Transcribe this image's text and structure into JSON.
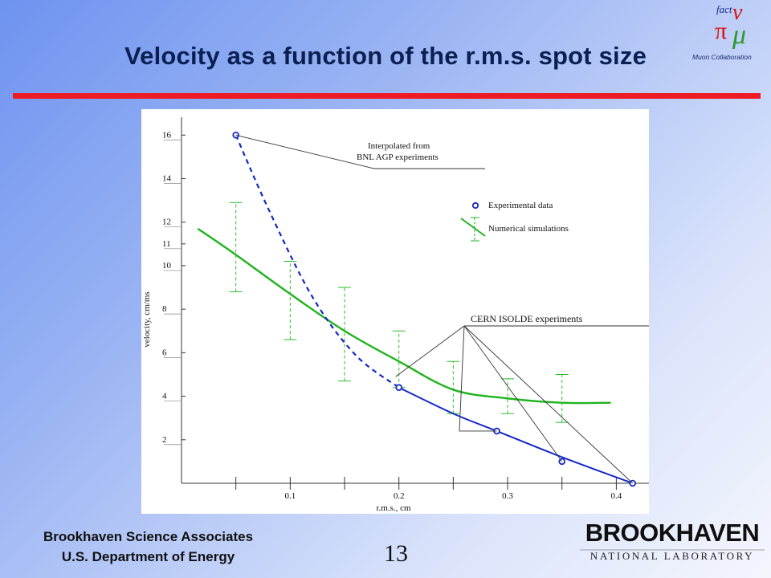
{
  "slide": {
    "title": "Velocity as a function of the r.m.s. spot size",
    "footer_line1": "Brookhaven Science Associates",
    "footer_line2": "U.S. Department of Energy",
    "page_number": "13",
    "logo_top": {
      "line1": "fact",
      "line2": "Muon Collaboration",
      "icon": "nu-pi-mu-logo"
    },
    "logo_bottom": {
      "word1": "BROOKHAVEN",
      "word2": "NATIONAL LABORATORY"
    },
    "colors": {
      "title": "#0a1f52",
      "rule": "#ee1b24",
      "experimental": "#1428c8",
      "simulation": "#1fb41f"
    }
  },
  "chart_data": {
    "type": "line",
    "xlabel": "r.m.s., cm",
    "ylabel": "velocity, cm/ms",
    "xlim": [
      0,
      0.43
    ],
    "ylim": [
      0,
      16.6
    ],
    "x_ticks": [
      0.1,
      0.2,
      0.3,
      0.4
    ],
    "x_tick_labels": [
      "0.1",
      "0.2",
      "0.3",
      "0.4"
    ],
    "y_ticks": [
      2,
      4,
      6,
      8,
      10,
      11,
      12,
      14,
      16
    ],
    "y_tick_labels": [
      "2",
      "4",
      "6",
      "8",
      "10",
      "11",
      "12",
      "14",
      "16"
    ],
    "legend": [
      {
        "label": "Experimental data",
        "marker": "circle"
      },
      {
        "label": "Numerical simulations",
        "marker": "line-errorbar"
      }
    ],
    "experimental_points": {
      "x": [
        0.05,
        0.2,
        0.29,
        0.35,
        0.415
      ],
      "y": [
        16.0,
        4.4,
        2.4,
        1.0,
        0.0
      ]
    },
    "bnl_extrapolation": {
      "x": [
        0.05,
        0.08,
        0.12,
        0.16,
        0.2
      ],
      "y": [
        16.0,
        12.6,
        8.6,
        5.9,
        4.4
      ]
    },
    "experimental_fit": {
      "x": [
        0.2,
        0.25,
        0.29,
        0.35,
        0.415
      ],
      "y": [
        4.4,
        3.2,
        2.4,
        1.2,
        0.0
      ]
    },
    "simulation_curve": {
      "x": [
        0.015,
        0.05,
        0.1,
        0.15,
        0.2,
        0.25,
        0.3,
        0.35,
        0.395
      ],
      "y": [
        11.7,
        10.5,
        8.7,
        7.0,
        5.6,
        4.3,
        3.9,
        3.7,
        3.7
      ]
    },
    "simulation_errorbars": [
      {
        "x": 0.05,
        "low": 8.8,
        "high": 12.9
      },
      {
        "x": 0.1,
        "low": 6.6,
        "high": 10.2
      },
      {
        "x": 0.15,
        "low": 4.7,
        "high": 9.0
      },
      {
        "x": 0.2,
        "low": 4.4,
        "high": 7.0
      },
      {
        "x": 0.25,
        "low": 3.2,
        "high": 5.6
      },
      {
        "x": 0.3,
        "low": 3.2,
        "high": 4.8
      },
      {
        "x": 0.35,
        "low": 2.8,
        "high": 5.0
      }
    ],
    "annotations": [
      {
        "text_line1": "Interpolated from",
        "text_line2": "BNL AGP experiments",
        "points_to_x": [
          0.05
        ],
        "points_to_y": [
          16.0
        ]
      },
      {
        "text": "CERN ISOLDE experiments",
        "points_to_x": [
          0.29,
          0.35,
          0.415
        ],
        "points_to_y": [
          2.4,
          1.0,
          0.0
        ]
      }
    ]
  }
}
